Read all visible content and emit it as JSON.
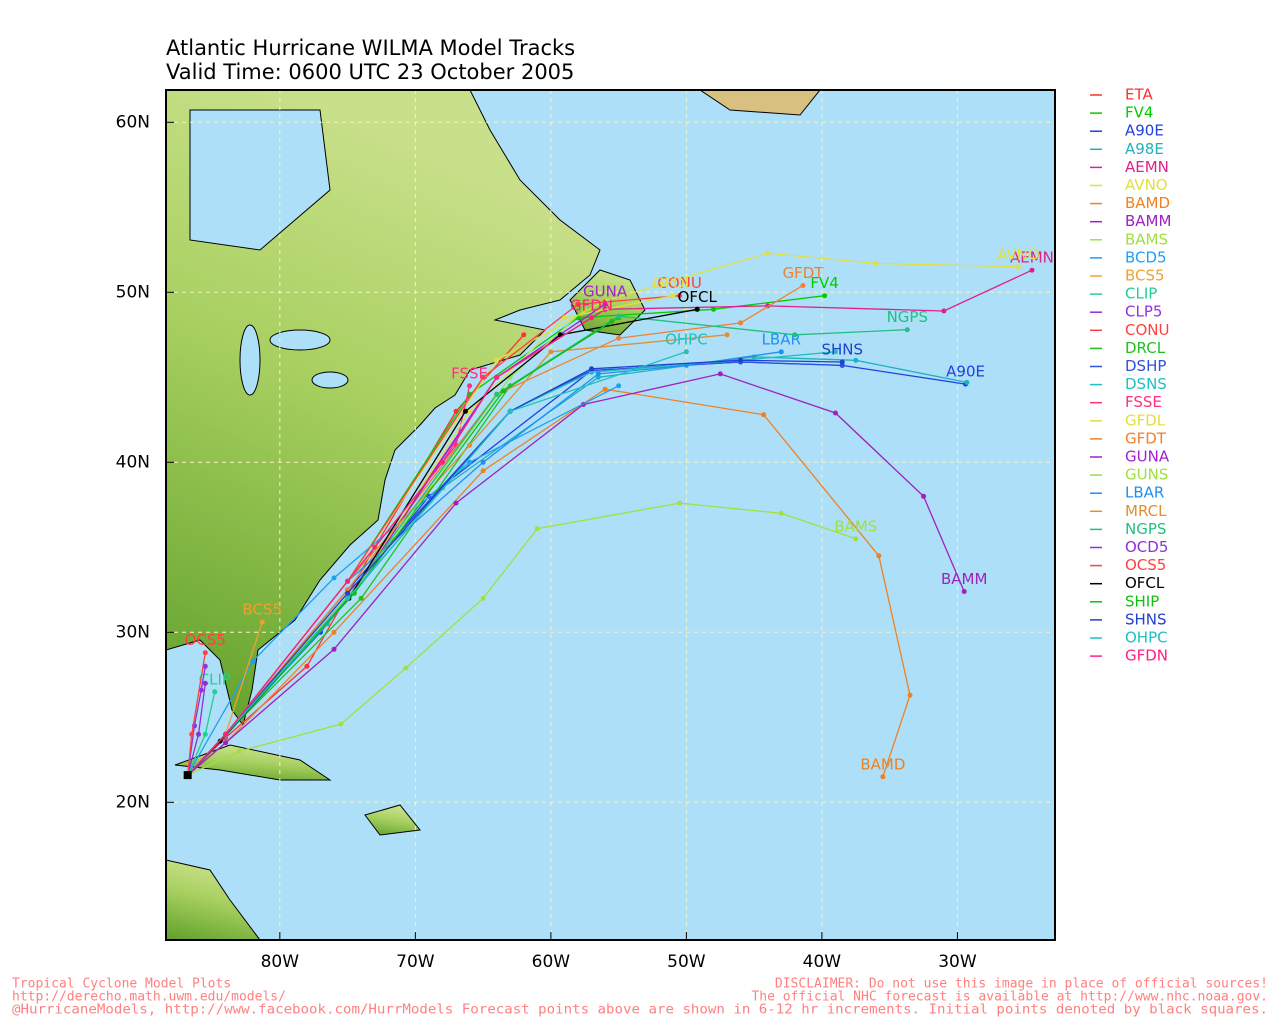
{
  "chart_data": {
    "type": "track-map",
    "title": "Atlantic Hurricane WILMA Model Tracks",
    "subtitle": "Valid Time: 0600 UTC 23 October 2005",
    "xlim": [
      -88.4,
      -22.8
    ],
    "ylim": [
      11.9,
      61.9
    ],
    "xticks": [
      {
        "value": -80,
        "label": "80W"
      },
      {
        "value": -70,
        "label": "70W"
      },
      {
        "value": -60,
        "label": "60W"
      },
      {
        "value": -50,
        "label": "50W"
      },
      {
        "value": -40,
        "label": "40W"
      },
      {
        "value": -30,
        "label": "30W"
      }
    ],
    "yticks": [
      {
        "value": 20,
        "label": "20N"
      },
      {
        "value": 30,
        "label": "30N"
      },
      {
        "value": 40,
        "label": "40N"
      },
      {
        "value": 50,
        "label": "50N"
      },
      {
        "value": 60,
        "label": "60N"
      }
    ],
    "grid": true,
    "series": [
      {
        "name": "ETA",
        "color": "#ff3030",
        "x": [
          -86.8,
          -84,
          -78,
          -73,
          -67,
          -62
        ],
        "values": [
          21.6,
          23.8,
          28,
          35,
          43,
          47.5
        ]
      },
      {
        "name": "FV4",
        "color": "#00cc00",
        "x": [
          -86.8,
          -84,
          -75,
          -66,
          -58,
          -48,
          -39.8
        ],
        "values": [
          21.6,
          24,
          33,
          44,
          48.5,
          49,
          49.8
        ],
        "end_label": true
      },
      {
        "name": "A90E",
        "color": "#2040e0",
        "x": [
          -86.8,
          -84,
          -77,
          -69,
          -57,
          -46,
          -38.5,
          -29.4
        ],
        "values": [
          21.6,
          24,
          30,
          38,
          45.4,
          45.9,
          45.7,
          44.6
        ],
        "end_label": true
      },
      {
        "name": "A98E",
        "color": "#20b0c0",
        "x": [
          -86.8,
          -84,
          -76.5,
          -68,
          -56.5,
          -45,
          -37.5,
          -29.3
        ],
        "values": [
          21.6,
          23.9,
          30.5,
          38.5,
          45,
          46.2,
          46,
          44.7
        ]
      },
      {
        "name": "AEMN",
        "color": "#e0208a",
        "x": [
          -86.8,
          -84,
          -75,
          -64,
          -56,
          -44,
          -31,
          -24.5
        ],
        "values": [
          21.6,
          24,
          32,
          45,
          49,
          49.2,
          48.9,
          51.3
        ],
        "end_label": true
      },
      {
        "name": "AVNO",
        "color": "#e0e040",
        "x": [
          -86.8,
          -84,
          -75,
          -64,
          -56,
          -44,
          -36,
          -25.5
        ],
        "values": [
          21.6,
          24,
          33,
          46,
          49.5,
          52.3,
          51.7,
          51.5
        ],
        "end_label": true
      },
      {
        "name": "BAMD",
        "color": "#f08020",
        "x": [
          -86.8,
          -84,
          -76,
          -65,
          -56,
          -44.3,
          -35.8,
          -33.5,
          -35.5
        ],
        "values": [
          21.6,
          23.5,
          30,
          39.5,
          44.3,
          42.8,
          34.5,
          26.3,
          21.5
        ],
        "end_label": true
      },
      {
        "name": "BAMM",
        "color": "#a020c0",
        "x": [
          -86.8,
          -84,
          -76,
          -67,
          -57.6,
          -47.5,
          -39,
          -32.5,
          -29.5
        ],
        "values": [
          21.6,
          23.5,
          29,
          37.6,
          43.4,
          45.2,
          42.9,
          38,
          32.4
        ],
        "end_label": true
      },
      {
        "name": "BAMS",
        "color": "#a0e040",
        "x": [
          -86.8,
          -83,
          -75.5,
          -70.7,
          -65,
          -61,
          -50.5,
          -43,
          -37.5
        ],
        "values": [
          21.6,
          23,
          24.6,
          27.9,
          32,
          36.1,
          37.6,
          37,
          35.5
        ],
        "end_label": true
      },
      {
        "name": "BCD5",
        "color": "#20a0f0",
        "x": [
          -86.8,
          -82,
          -76,
          -66,
          -55
        ],
        "values": [
          21.6,
          28.3,
          33.2,
          40,
          44.5
        ]
      },
      {
        "name": "BCS5",
        "color": "#f0a030",
        "x": [
          -86.8,
          -84,
          -81.3
        ],
        "values": [
          21.6,
          24,
          30.6
        ],
        "end_label": true
      },
      {
        "name": "CLIP",
        "color": "#20d090",
        "x": [
          -86.8,
          -85.5,
          -84.8
        ],
        "values": [
          21.6,
          24,
          26.5
        ],
        "end_label": true
      },
      {
        "name": "CLP5",
        "color": "#9030e0",
        "x": [
          -86.8,
          -86.3,
          -85.8,
          -85.5
        ],
        "values": [
          21.6,
          24.5,
          26.6,
          28
        ]
      },
      {
        "name": "CONU",
        "color": "#ff4040",
        "x": [
          -86.8,
          -84,
          -75,
          -65,
          -58,
          -50.5
        ],
        "values": [
          21.6,
          24,
          33,
          45,
          49.3,
          49.8
        ],
        "end_label": true
      },
      {
        "name": "DRCL",
        "color": "#20c020",
        "x": [
          -86.8,
          -84,
          -74,
          -63,
          -55
        ],
        "values": [
          21.6,
          24,
          32,
          44.5,
          48.5
        ]
      },
      {
        "name": "DSHP",
        "color": "#3050e0",
        "x": [
          -86.8,
          -84,
          -75,
          -63,
          -57,
          -46,
          -38.5
        ],
        "values": [
          21.6,
          24,
          32.5,
          43,
          45.4,
          45.9,
          45.7
        ]
      },
      {
        "name": "DSNS",
        "color": "#20c0c0",
        "x": [
          -86.8,
          -84,
          -75,
          -63,
          -57,
          -46,
          -39
        ],
        "values": [
          21.6,
          24,
          32,
          43,
          45.3,
          46,
          46.5
        ]
      },
      {
        "name": "FSSE",
        "color": "#ff3080",
        "x": [
          -86.8,
          -84,
          -75,
          -67,
          -66
        ],
        "values": [
          21.6,
          24,
          33,
          41,
          44.5
        ],
        "end_label": true
      },
      {
        "name": "GFDL",
        "color": "#e0e040",
        "x": [
          -86.8,
          -84,
          -74,
          -66,
          -59,
          -51
        ],
        "values": [
          21.6,
          24,
          33,
          43,
          48.5,
          49.8
        ],
        "end_label": true
      },
      {
        "name": "GFDT",
        "color": "#f08030",
        "x": [
          -86.8,
          -84,
          -75,
          -64,
          -55,
          -46,
          -41.4
        ],
        "values": [
          21.6,
          24,
          32.5,
          44,
          47.3,
          48.2,
          50.4
        ],
        "end_label": true
      },
      {
        "name": "GUNA",
        "color": "#a020d0",
        "x": [
          -86.8,
          -84,
          -74,
          -64,
          -56
        ],
        "values": [
          21.6,
          24,
          33,
          45,
          49.3
        ],
        "end_label": true
      },
      {
        "name": "GUNS",
        "color": "#a0e040",
        "x": [
          -86.8,
          -84,
          -74,
          -63,
          -57.5
        ],
        "values": [
          21.6,
          24,
          33,
          45,
          49
        ]
      },
      {
        "name": "LBAR",
        "color": "#2090f0",
        "x": [
          -86.8,
          -84,
          -75,
          -65,
          -56.5,
          -50,
          -43
        ],
        "values": [
          21.6,
          24,
          33,
          40,
          45.2,
          45.7,
          46.5
        ],
        "end_label": true
      },
      {
        "name": "MRCL",
        "color": "#e09030",
        "x": [
          -86.8,
          -84,
          -75,
          -66,
          -60,
          -47
        ],
        "values": [
          21.6,
          24,
          33,
          41,
          46.5,
          47.5
        ]
      },
      {
        "name": "NGPS",
        "color": "#20c080",
        "x": [
          -86.8,
          -84,
          -75,
          -64,
          -55,
          -42,
          -33.7
        ],
        "values": [
          21.6,
          24,
          32,
          44,
          48.6,
          47.5,
          47.8
        ],
        "end_label": true
      },
      {
        "name": "OCD5",
        "color": "#9030d0",
        "x": [
          -86.8,
          -86,
          -85.5
        ],
        "values": [
          21.6,
          24,
          27
        ]
      },
      {
        "name": "OCS5",
        "color": "#ff4040",
        "x": [
          -86.8,
          -86.5,
          -85.5
        ],
        "values": [
          21.6,
          24,
          28.8
        ],
        "end_label": true
      },
      {
        "name": "OFCL",
        "color": "#000000",
        "x": [
          -86.8,
          -84.4,
          -74.9,
          -66.3,
          -59.3,
          -49.2
        ],
        "values": [
          21.6,
          23.6,
          32,
          43,
          47.5,
          49
        ],
        "end_label": true
      },
      {
        "name": "SHIP",
        "color": "#10c010",
        "x": [
          -86.8,
          -84,
          -74.5,
          -63.5,
          -55.5
        ],
        "values": [
          21.6,
          24,
          32.3,
          44.2,
          48.3
        ]
      },
      {
        "name": "SHNS",
        "color": "#2040d0",
        "x": [
          -86.8,
          -84,
          -75,
          -63,
          -57,
          -46,
          -38.5
        ],
        "values": [
          21.6,
          24,
          32.3,
          43,
          45.5,
          46,
          45.9
        ],
        "end_label": true
      },
      {
        "name": "OHPC",
        "color": "#20c0c0",
        "x": [
          -86.8,
          -84,
          -75,
          -63,
          -50
        ],
        "values": [
          21.6,
          24,
          32,
          43,
          46.5
        ],
        "end_label": true
      },
      {
        "name": "GFDN",
        "color": "#ff2080",
        "x": [
          -86.8,
          -84,
          -75,
          -68,
          -64,
          -57
        ],
        "values": [
          21.6,
          24,
          33,
          40,
          45,
          48.5
        ],
        "end_label": true
      }
    ]
  },
  "footer": {
    "left": [
      "Tropical Cyclone Model Plots",
      "http://derecho.math.uwm.edu/models/"
    ],
    "right": [
      "DISCLAIMER: Do not use this image in place of official sources!",
      "The official NHC forecast is available at http://www.nhc.noaa.gov."
    ],
    "bottom": "@HurricaneModels, http://www.facebook.com/HurrModels  Forecast points above are shown in 6-12 hr increments. Initial points denoted by black squares."
  }
}
